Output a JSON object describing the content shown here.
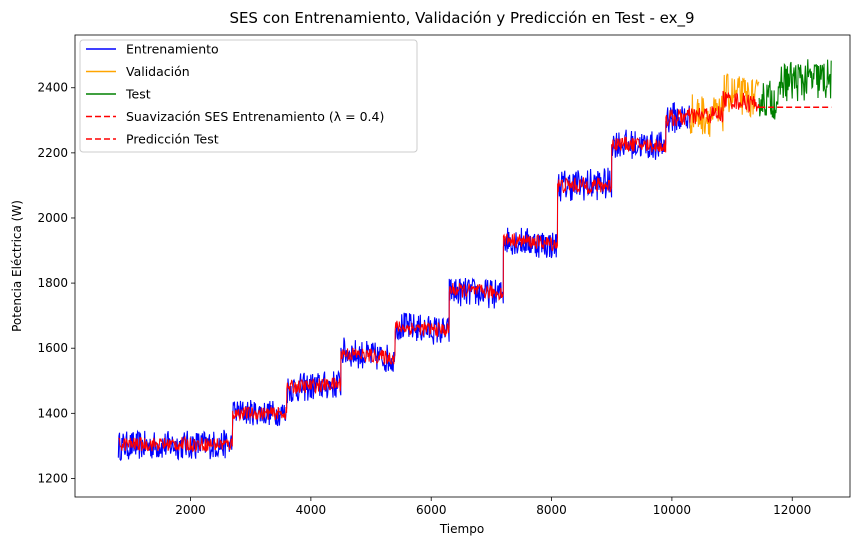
{
  "chart_data": {
    "type": "line",
    "title": "SES con Entrenamiento, Validación y Predicción en Test - ex_9",
    "xlabel": "Tiempo",
    "ylabel": "Potencia Eléctrica (W)",
    "xlim": [
      80,
      12960
    ],
    "ylim": [
      1143,
      2562
    ],
    "xticks": [
      2000,
      4000,
      6000,
      8000,
      10000,
      12000
    ],
    "yticks": [
      1200,
      1400,
      1600,
      1800,
      2000,
      2200,
      2400
    ],
    "grid": false,
    "legend_position": "top-left",
    "series": [
      {
        "name": "Entrenamiento",
        "color": "#0000ff",
        "style": "solid",
        "band_segments": [
          {
            "x": [
              800,
              2700
            ],
            "center": [
              1300,
              1305
            ],
            "amplitude": 45
          },
          {
            "x": [
              2700,
              3600
            ],
            "center": [
              1405,
              1400
            ],
            "amplitude": 40
          },
          {
            "x": [
              3600,
              4500
            ],
            "center": [
              1475,
              1490
            ],
            "amplitude": 45
          },
          {
            "x": [
              4500,
              5400
            ],
            "center": [
              1590,
              1565
            ],
            "amplitude": 45
          },
          {
            "x": [
              5400,
              6300
            ],
            "center": [
              1670,
              1650
            ],
            "amplitude": 45
          },
          {
            "x": [
              6300,
              7200
            ],
            "center": [
              1775,
              1765
            ],
            "amplitude": 45
          },
          {
            "x": [
              7200,
              8100
            ],
            "center": [
              1935,
              1915
            ],
            "amplitude": 45
          },
          {
            "x": [
              8100,
              9000
            ],
            "center": [
              2100,
              2105
            ],
            "amplitude": 50
          },
          {
            "x": [
              9000,
              9900
            ],
            "center": [
              2230,
              2220
            ],
            "amplitude": 45
          },
          {
            "x": [
              9900,
              10300
            ],
            "center": [
              2310,
              2305
            ],
            "amplitude": 50
          }
        ]
      },
      {
        "name": "Validación",
        "color": "#ffa500",
        "style": "solid",
        "band_segments": [
          {
            "x": [
              10300,
              10850
            ],
            "center": [
              2320,
              2310
            ],
            "amplitude": 65
          },
          {
            "x": [
              10850,
              11450
            ],
            "center": [
              2385,
              2365
            ],
            "amplitude": 60
          }
        ]
      },
      {
        "name": "Test",
        "color": "#008000",
        "style": "solid",
        "band_segments": [
          {
            "x": [
              11450,
              11800
            ],
            "center": [
              2370,
              2360
            ],
            "amplitude": 60
          },
          {
            "x": [
              11800,
              12650
            ],
            "center": [
              2420,
              2425
            ],
            "amplitude": 65
          }
        ]
      },
      {
        "name": "Suavización SES Entrenamiento (λ = 0.4)",
        "color": "#ff0000",
        "style": "dashed",
        "band_segments": [
          {
            "x": [
              800,
              2700
            ],
            "center": [
              1305,
              1305
            ],
            "amplitude": 22
          },
          {
            "x": [
              2700,
              3600
            ],
            "center": [
              1400,
              1400
            ],
            "amplitude": 20
          },
          {
            "x": [
              3600,
              4500
            ],
            "center": [
              1480,
              1490
            ],
            "amplitude": 22
          },
          {
            "x": [
              4500,
              5400
            ],
            "center": [
              1585,
              1570
            ],
            "amplitude": 22
          },
          {
            "x": [
              5400,
              6300
            ],
            "center": [
              1665,
              1655
            ],
            "amplitude": 22
          },
          {
            "x": [
              6300,
              7200
            ],
            "center": [
              1780,
              1770
            ],
            "amplitude": 22
          },
          {
            "x": [
              7200,
              8100
            ],
            "center": [
              1935,
              1920
            ],
            "amplitude": 22
          },
          {
            "x": [
              8100,
              9000
            ],
            "center": [
              2100,
              2100
            ],
            "amplitude": 25
          },
          {
            "x": [
              9000,
              9900
            ],
            "center": [
              2230,
              2220
            ],
            "amplitude": 22
          },
          {
            "x": [
              9900,
              10850
            ],
            "center": [
              2305,
              2320
            ],
            "amplitude": 28
          },
          {
            "x": [
              10850,
              11450
            ],
            "center": [
              2365,
              2350
            ],
            "amplitude": 28
          }
        ]
      },
      {
        "name": "Predicción Test",
        "color": "#ff0000",
        "style": "dashed",
        "points": [
          [
            11450,
            2340
          ],
          [
            12650,
            2340
          ]
        ]
      }
    ]
  }
}
